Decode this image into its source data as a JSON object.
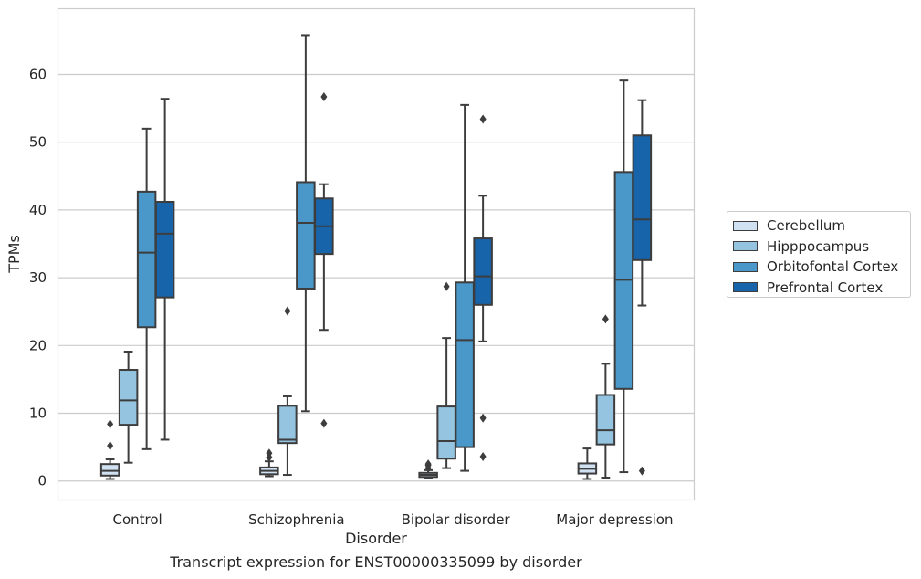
{
  "caption": "Transcript expression for ENST00000335099 by disorder",
  "chart_data": {
    "type": "box",
    "title": "",
    "xlabel": "Disorder",
    "ylabel": "TPMs",
    "ylim": [
      -2.8,
      69.7
    ],
    "yticks": [
      0,
      10,
      20,
      30,
      40,
      50,
      60
    ],
    "grid": "horizontal",
    "legend_position": "right",
    "categories": [
      "Control",
      "Schizophrenia",
      "Bipolar disorder",
      "Major depression"
    ],
    "series": [
      {
        "name": "Cerebellum",
        "color": "#d0e1f2",
        "boxes": [
          {
            "whisker_low": 0.3,
            "q1": 0.8,
            "median": 1.5,
            "q3": 2.5,
            "whisker_high": 3.2,
            "outliers": [
              5.2,
              8.4
            ]
          },
          {
            "whisker_low": 0.7,
            "q1": 1.0,
            "median": 1.5,
            "q3": 2.0,
            "whisker_high": 2.9,
            "outliers": [
              3.5,
              4.1
            ]
          },
          {
            "whisker_low": 0.4,
            "q1": 0.6,
            "median": 0.9,
            "q3": 1.2,
            "whisker_high": 1.6,
            "outliers": [
              1.9,
              2.3,
              2.5
            ]
          },
          {
            "whisker_low": 0.3,
            "q1": 1.1,
            "median": 1.8,
            "q3": 2.6,
            "whisker_high": 4.8,
            "outliers": []
          }
        ]
      },
      {
        "name": "Hipppocampus",
        "color": "#94c4df",
        "boxes": [
          {
            "whisker_low": 2.7,
            "q1": 8.3,
            "median": 11.9,
            "q3": 16.4,
            "whisker_high": 19.1,
            "outliers": []
          },
          {
            "whisker_low": 0.9,
            "q1": 5.6,
            "median": 6.1,
            "q3": 11.1,
            "whisker_high": 12.5,
            "outliers": [
              25.1
            ]
          },
          {
            "whisker_low": 1.9,
            "q1": 3.3,
            "median": 5.9,
            "q3": 11.0,
            "whisker_high": 21.1,
            "outliers": [
              28.7
            ]
          },
          {
            "whisker_low": 0.5,
            "q1": 5.4,
            "median": 7.5,
            "q3": 12.7,
            "whisker_high": 17.3,
            "outliers": [
              23.9
            ]
          }
        ]
      },
      {
        "name": "Orbitofontal Cortex",
        "color": "#4a98c9",
        "boxes": [
          {
            "whisker_low": 4.7,
            "q1": 22.7,
            "median": 33.7,
            "q3": 42.7,
            "whisker_high": 52.0,
            "outliers": []
          },
          {
            "whisker_low": 10.3,
            "q1": 28.4,
            "median": 38.1,
            "q3": 44.1,
            "whisker_high": 65.8,
            "outliers": []
          },
          {
            "whisker_low": 1.5,
            "q1": 5.0,
            "median": 20.8,
            "q3": 29.3,
            "whisker_high": 55.5,
            "outliers": []
          },
          {
            "whisker_low": 1.3,
            "q1": 13.6,
            "median": 29.7,
            "q3": 45.6,
            "whisker_high": 59.1,
            "outliers": []
          }
        ]
      },
      {
        "name": "Prefrontal Cortex",
        "color": "#1764ab",
        "boxes": [
          {
            "whisker_low": 6.1,
            "q1": 27.1,
            "median": 36.5,
            "q3": 41.2,
            "whisker_high": 56.4,
            "outliers": []
          },
          {
            "whisker_low": 22.3,
            "q1": 33.5,
            "median": 37.6,
            "q3": 41.7,
            "whisker_high": 43.8,
            "outliers": [
              8.5,
              56.7
            ]
          },
          {
            "whisker_low": 20.6,
            "q1": 26.0,
            "median": 30.2,
            "q3": 35.8,
            "whisker_high": 42.1,
            "outliers": [
              3.6,
              9.3,
              53.4
            ]
          },
          {
            "whisker_low": 25.9,
            "q1": 32.6,
            "median": 38.6,
            "q3": 51.0,
            "whisker_high": 56.2,
            "outliers": [
              1.5
            ]
          }
        ]
      }
    ]
  }
}
